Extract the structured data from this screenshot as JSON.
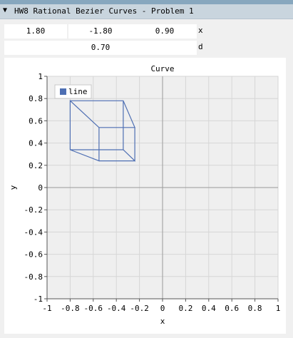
{
  "window": {
    "title": "HW8 Rational Bezier Curves - Problem 1",
    "collapse_icon": "triangle-down-icon"
  },
  "controls": {
    "x_values": [
      "1.80",
      "-1.80",
      "0.90"
    ],
    "x_label": "x",
    "d_value": "0.70",
    "d_label": "d"
  },
  "chart_data": {
    "type": "line",
    "title": "Curve",
    "xlabel": "x",
    "ylabel": "y",
    "xlim": [
      -1,
      1
    ],
    "ylim": [
      -1,
      1
    ],
    "xticks": [
      "-1",
      "-0.8",
      "-0.6",
      "-0.4",
      "-0.2",
      "0",
      "0.2",
      "0.4",
      "0.6",
      "0.8",
      "1"
    ],
    "yticks": [
      "1",
      "0.8",
      "0.6",
      "0.4",
      "0.2",
      "0",
      "-0.2",
      "-0.4",
      "-0.6",
      "-0.8",
      "-1"
    ],
    "grid": true,
    "legend_position": "top-left",
    "series": [
      {
        "name": "line",
        "color": "#4e6fb3",
        "points": [
          [
            -0.8,
            0.78
          ],
          [
            -0.34,
            0.78
          ],
          [
            -0.24,
            0.54
          ],
          [
            -0.55,
            0.54
          ],
          [
            -0.8,
            0.78
          ],
          [
            -0.8,
            0.34
          ],
          [
            -0.55,
            0.24
          ],
          [
            -0.55,
            0.54
          ],
          [
            -0.55,
            0.24
          ],
          [
            -0.24,
            0.24
          ],
          [
            -0.24,
            0.54
          ],
          [
            -0.24,
            0.24
          ],
          [
            -0.34,
            0.34
          ],
          [
            -0.8,
            0.34
          ],
          [
            -0.34,
            0.34
          ],
          [
            -0.34,
            0.78
          ]
        ]
      }
    ]
  }
}
